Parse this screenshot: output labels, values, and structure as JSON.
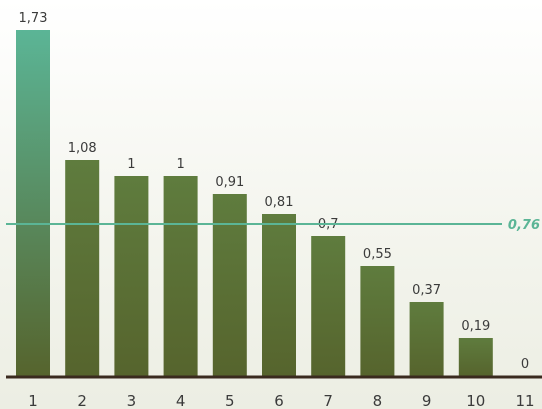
{
  "chart_data": {
    "type": "bar",
    "categories": [
      "1",
      "2",
      "3",
      "4",
      "5",
      "6",
      "7",
      "8",
      "9",
      "10",
      "11"
    ],
    "values": [
      1.73,
      1.08,
      1,
      1,
      0.91,
      0.81,
      0.7,
      0.55,
      0.37,
      0.19,
      0
    ],
    "value_labels": [
      "1,73",
      "1,08",
      "1",
      "1",
      "0,91",
      "0,81",
      "0,7",
      "0,55",
      "0,37",
      "0,19",
      "0"
    ],
    "reference_line": {
      "value": 0.76,
      "label": "0,76",
      "color": "#5bb596"
    },
    "title": "",
    "xlabel": "",
    "ylabel": "",
    "ylim": [
      0,
      1.73
    ],
    "grid": false,
    "legend": "none",
    "colors": {
      "bar_top": "#5bb596",
      "bar_bottom": "#56642d",
      "bar_top_secondary": "#5f7c3e",
      "axis": "#3a2a1e"
    }
  }
}
